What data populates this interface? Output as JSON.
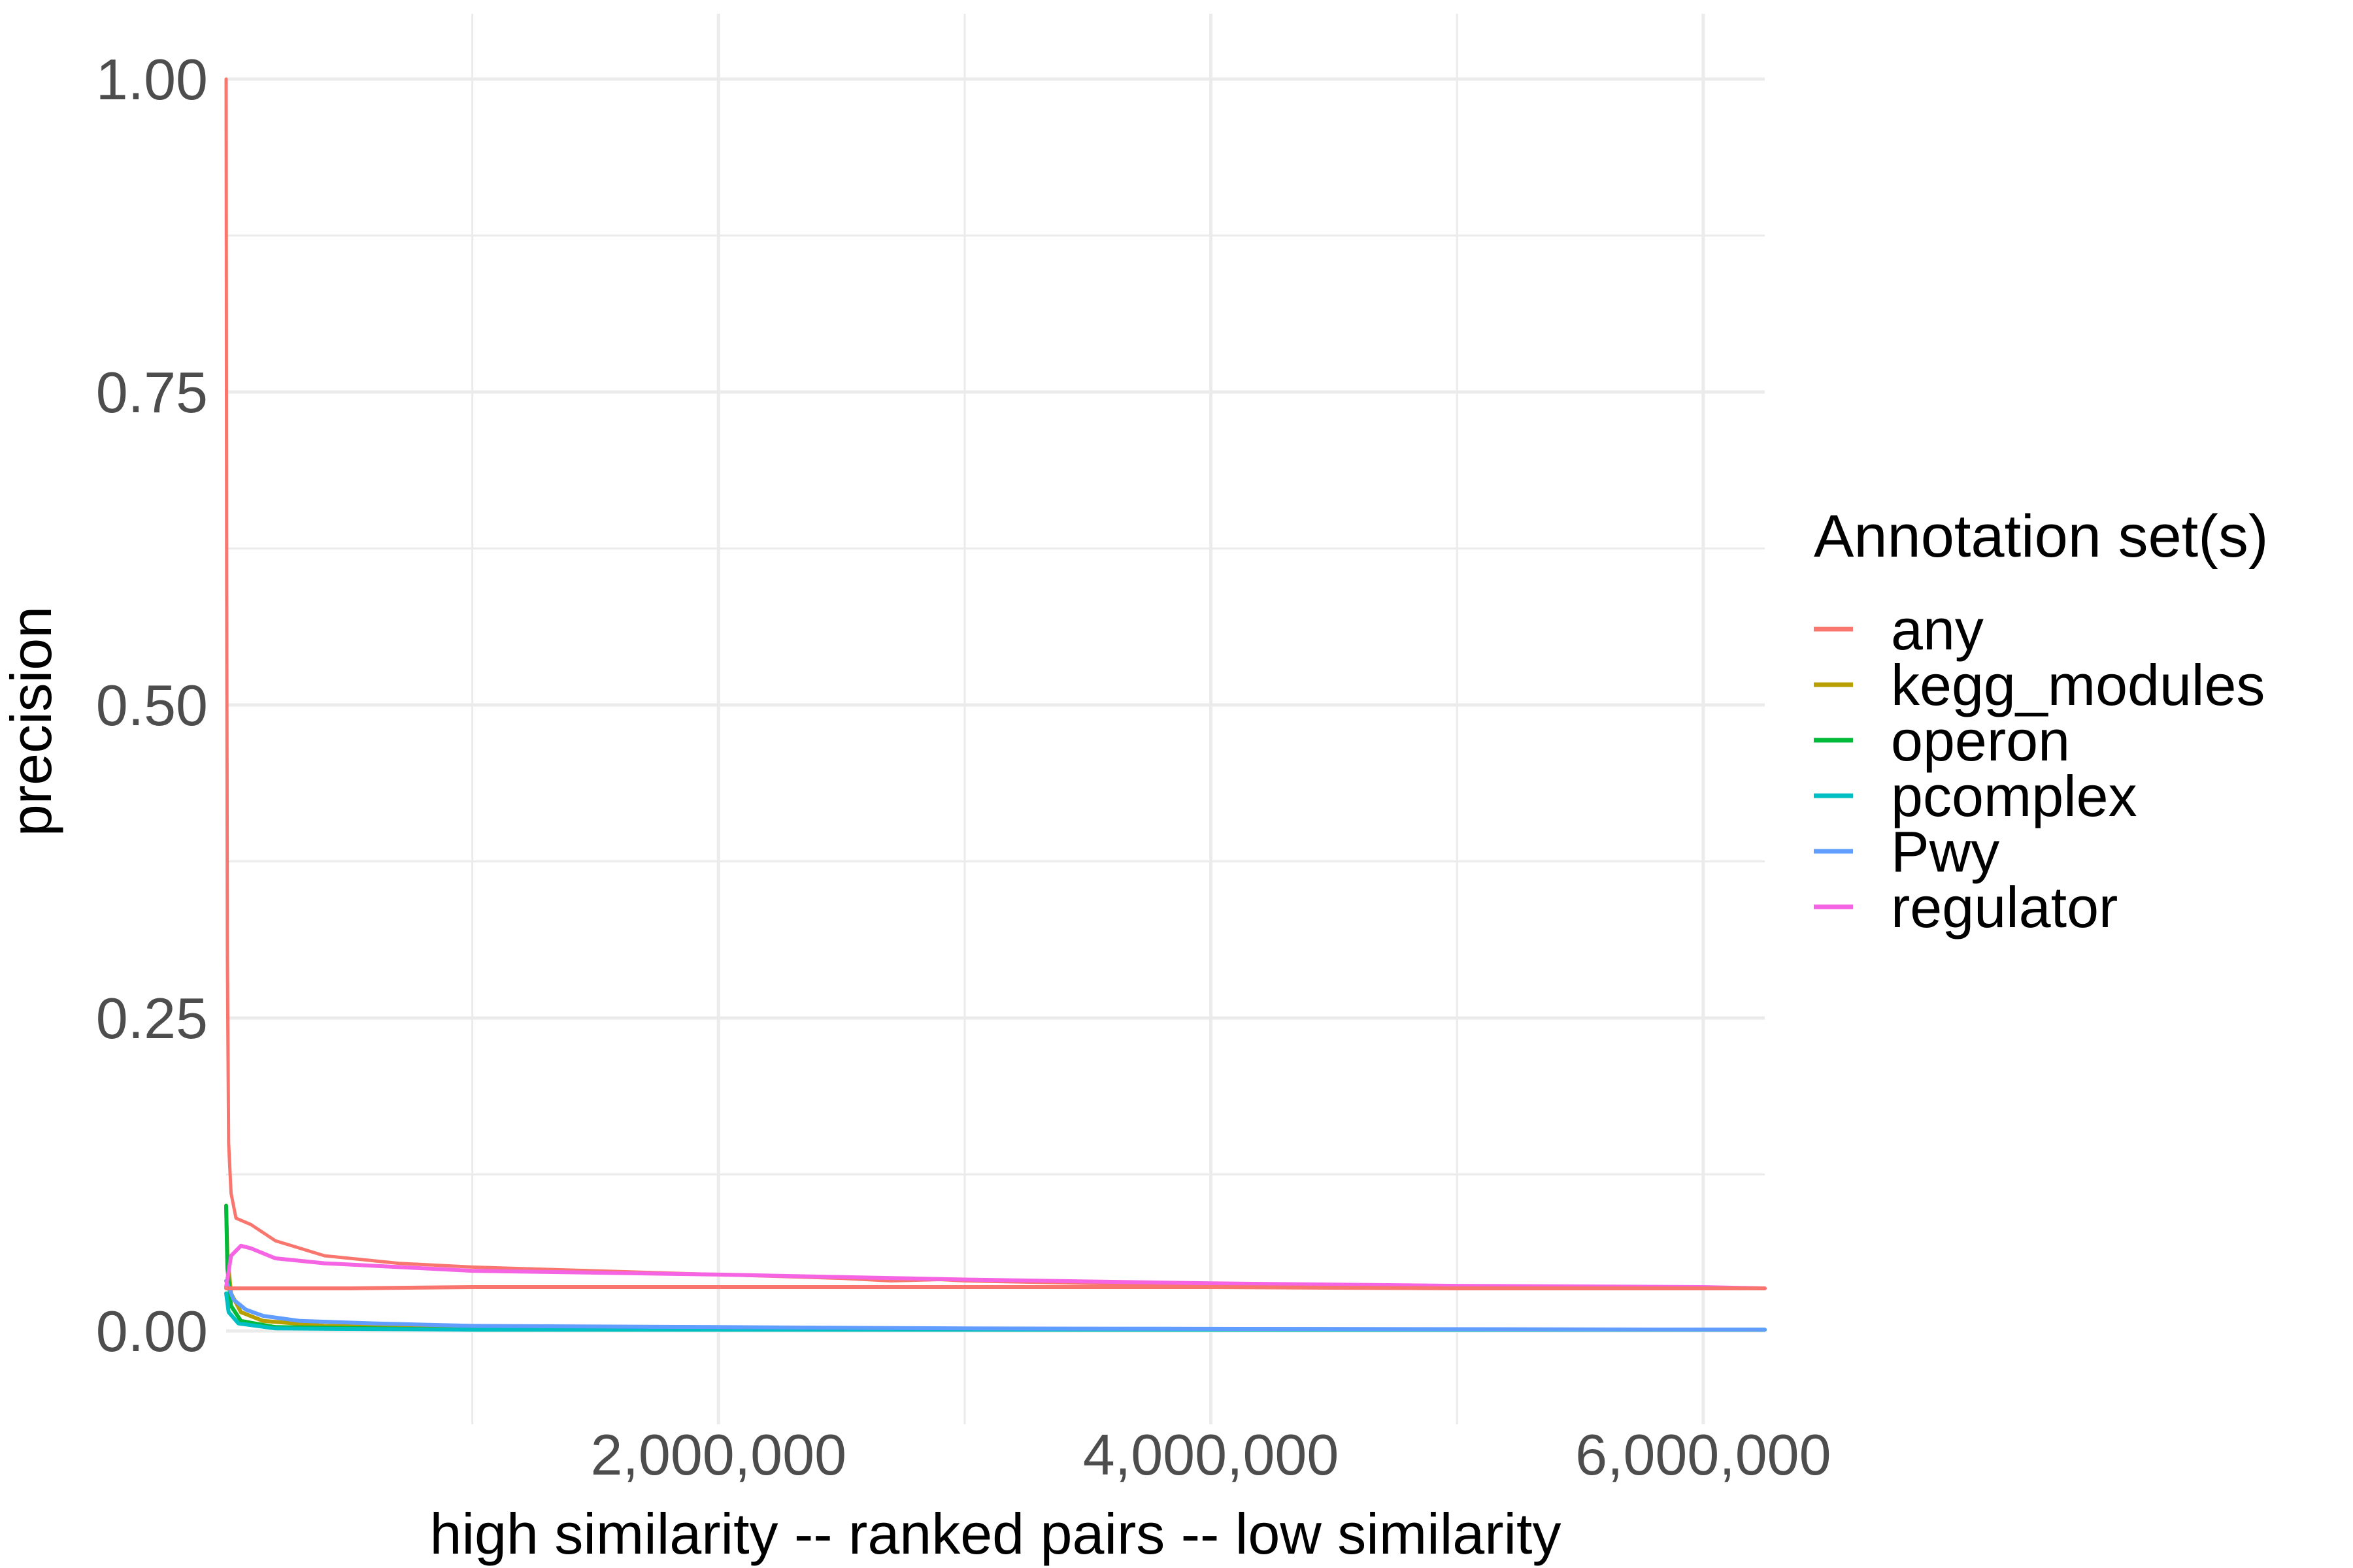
{
  "chart_data": {
    "type": "line",
    "title": "",
    "xlabel": "high similarity -- ranked pairs -- low similarity",
    "ylabel": "precision",
    "xlim": [
      0,
      6250000
    ],
    "ylim": [
      -0.025,
      1.0
    ],
    "x_ticks": [
      2000000,
      4000000,
      6000000
    ],
    "x_tick_labels": [
      "2,000,000",
      "4,000,000",
      "6,000,000"
    ],
    "y_ticks": [
      0.0,
      0.25,
      0.5,
      0.75,
      1.0
    ],
    "y_tick_labels": [
      "0.00",
      "0.25",
      "0.50",
      "0.75",
      "1.00"
    ],
    "grid": true,
    "legend": {
      "title": "Annotation set(s)",
      "position": "right"
    },
    "series": [
      {
        "name": "any",
        "color": "#F8766D",
        "points": [
          [
            1,
            1.0
          ],
          [
            2000,
            0.6
          ],
          [
            5000,
            0.3
          ],
          [
            10000,
            0.15
          ],
          [
            20000,
            0.11
          ],
          [
            40000,
            0.09
          ],
          [
            100000,
            0.085
          ],
          [
            200000,
            0.072
          ],
          [
            400000,
            0.06
          ],
          [
            700000,
            0.054
          ],
          [
            1000000,
            0.051
          ],
          [
            1500000,
            0.048
          ],
          [
            2000000,
            0.045
          ],
          [
            2500000,
            0.042
          ],
          [
            2700000,
            0.04
          ],
          [
            2900000,
            0.041
          ],
          [
            3000000,
            0.04
          ],
          [
            3500000,
            0.038
          ],
          [
            4000000,
            0.037
          ],
          [
            5000000,
            0.035
          ],
          [
            6000000,
            0.034
          ],
          [
            6250000,
            0.034
          ]
        ]
      },
      {
        "name": "kegg_modules",
        "color": "#B79F00",
        "points": [
          [
            1,
            0.1
          ],
          [
            5000,
            0.06
          ],
          [
            20000,
            0.03
          ],
          [
            60000,
            0.015
          ],
          [
            150000,
            0.008
          ],
          [
            400000,
            0.004
          ],
          [
            1000000,
            0.002
          ],
          [
            3000000,
            0.0015
          ],
          [
            6250000,
            0.001
          ]
        ]
      },
      {
        "name": "operon",
        "color": "#00BA38",
        "points": [
          [
            1,
            0.1
          ],
          [
            5000,
            0.05
          ],
          [
            20000,
            0.02
          ],
          [
            60000,
            0.008
          ],
          [
            200000,
            0.003
          ],
          [
            1000000,
            0.001
          ],
          [
            3000000,
            0.001
          ],
          [
            6250000,
            0.001
          ]
        ]
      },
      {
        "name": "pcomplex",
        "color": "#00BFC4",
        "points": [
          [
            1,
            0.03
          ],
          [
            10000,
            0.015
          ],
          [
            50000,
            0.006
          ],
          [
            200000,
            0.002
          ],
          [
            1000000,
            0.001
          ],
          [
            6250000,
            0.001
          ]
        ]
      },
      {
        "name": "Pwy",
        "color": "#619CFF",
        "points": [
          [
            1,
            0.04
          ],
          [
            10000,
            0.035
          ],
          [
            30000,
            0.025
          ],
          [
            80000,
            0.017
          ],
          [
            150000,
            0.012
          ],
          [
            300000,
            0.008
          ],
          [
            600000,
            0.006
          ],
          [
            1000000,
            0.004
          ],
          [
            2000000,
            0.003
          ],
          [
            3000000,
            0.002
          ],
          [
            6250000,
            0.001
          ]
        ]
      },
      {
        "name": "regulator",
        "color": "#F564E3",
        "points": [
          [
            1,
            0.035
          ],
          [
            20000,
            0.06
          ],
          [
            60000,
            0.068
          ],
          [
            100000,
            0.066
          ],
          [
            200000,
            0.058
          ],
          [
            400000,
            0.054
          ],
          [
            700000,
            0.051
          ],
          [
            1000000,
            0.048
          ],
          [
            2000000,
            0.045
          ],
          [
            3000000,
            0.041
          ],
          [
            4000000,
            0.038
          ],
          [
            5000000,
            0.036
          ],
          [
            6000000,
            0.035
          ],
          [
            6250000,
            0.034
          ]
        ]
      },
      {
        "name": "",
        "color": "#F8766D",
        "points": [
          [
            0,
            0.034
          ],
          [
            500000,
            0.034
          ],
          [
            1000000,
            0.035
          ],
          [
            2000000,
            0.035
          ],
          [
            3000000,
            0.035
          ],
          [
            4000000,
            0.035
          ],
          [
            5000000,
            0.034
          ],
          [
            6250000,
            0.034
          ]
        ]
      }
    ]
  }
}
